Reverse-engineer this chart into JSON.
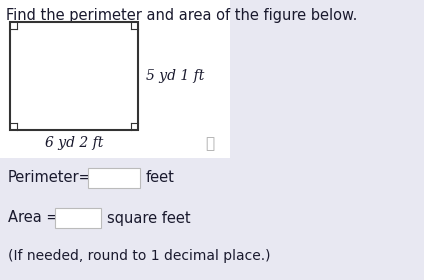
{
  "title": "Find the perimeter and area of the figure below.",
  "title_fontsize": 10.5,
  "bg_color": "#e8e8f2",
  "white_panel_color": "#ffffff",
  "figure_label_width": "6 yd 2 ft",
  "figure_label_height": "5 yd 1 ft",
  "perimeter_label": "Perimeter=",
  "perimeter_unit": "feet",
  "area_label": "Area =",
  "area_unit": "square feet",
  "note": "(If needed, round to 1 decimal place.)",
  "font_color": "#1a1a2e"
}
